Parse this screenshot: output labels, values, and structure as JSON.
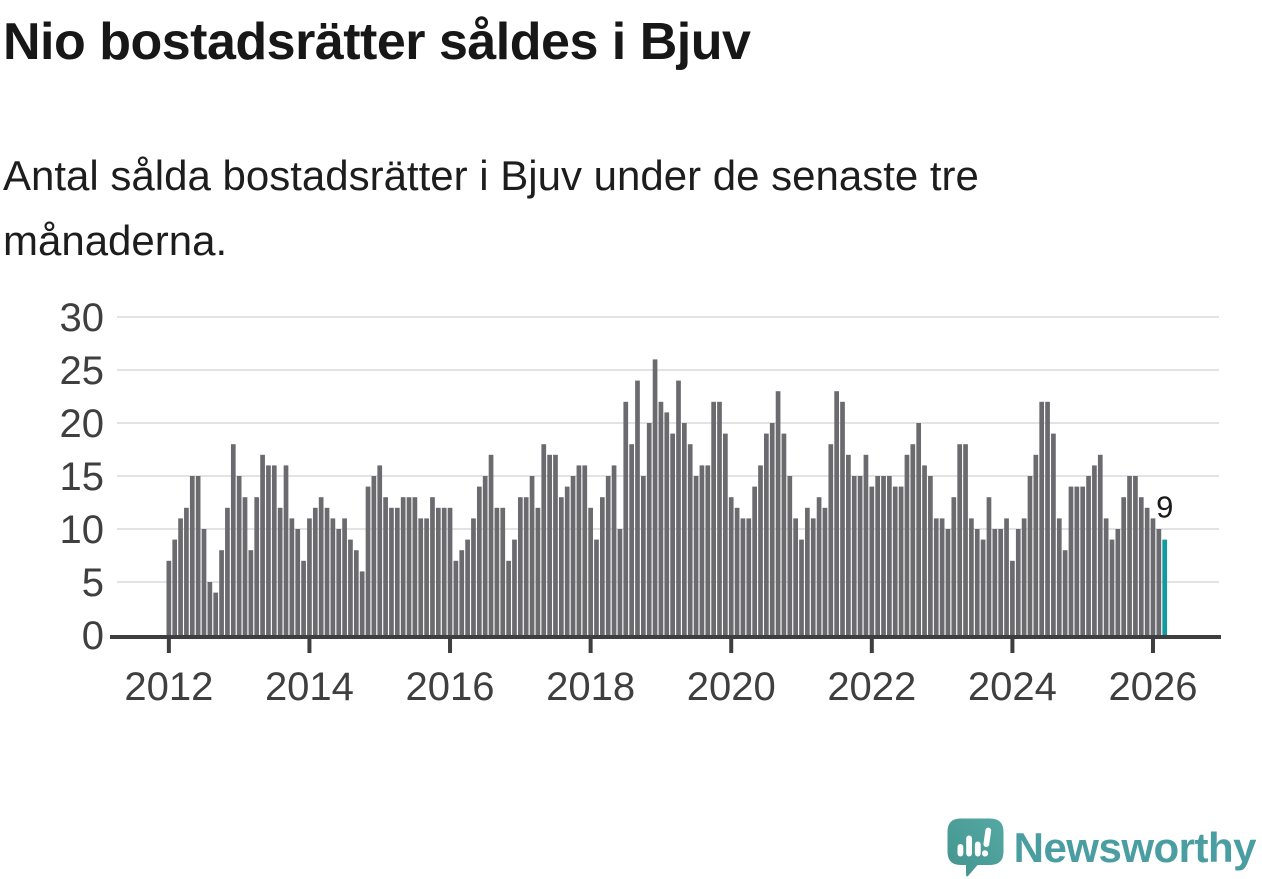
{
  "header": {
    "title": "Nio bostadsrätter såldes i Bjuv",
    "subtitle": "Antal sålda bostadsrätter i Bjuv under de senaste tre månaderna."
  },
  "branding": {
    "name": "Newsworthy",
    "icon": "newsworthy-speech-bubble-bar-chart-icon",
    "icon_color": "#4FA19E",
    "text_color": "#4A9EA1"
  },
  "chart_data": {
    "type": "bar",
    "title": "Nio bostadsrätter såldes i Bjuv",
    "subtitle": "Antal sålda bostadsrätter i Bjuv under de senaste tre månaderna.",
    "frequency": "monthly",
    "x_start_year": 2012,
    "x_tick_labels": [
      "2012",
      "2014",
      "2016",
      "2018",
      "2020",
      "2022",
      "2024",
      "2026"
    ],
    "y_ticks": [
      0,
      5,
      10,
      15,
      20,
      25,
      30
    ],
    "ylim": [
      0,
      30
    ],
    "grid": true,
    "legend": "none",
    "values": [
      7,
      9,
      11,
      12,
      15,
      15,
      10,
      5,
      4,
      8,
      12,
      18,
      15,
      13,
      8,
      13,
      17,
      16,
      16,
      12,
      16,
      11,
      10,
      7,
      11,
      12,
      13,
      12,
      11,
      10,
      11,
      9,
      8,
      6,
      14,
      15,
      16,
      13,
      12,
      12,
      13,
      13,
      13,
      11,
      11,
      13,
      12,
      12,
      12,
      7,
      8,
      9,
      11,
      14,
      15,
      17,
      12,
      12,
      7,
      9,
      13,
      13,
      15,
      12,
      18,
      17,
      17,
      13,
      14,
      15,
      16,
      16,
      12,
      9,
      13,
      15,
      16,
      10,
      22,
      18,
      24,
      15,
      20,
      26,
      22,
      21,
      19,
      24,
      20,
      18,
      15,
      16,
      16,
      22,
      22,
      19,
      13,
      12,
      11,
      11,
      14,
      16,
      19,
      20,
      23,
      19,
      15,
      11,
      9,
      12,
      11,
      13,
      12,
      18,
      23,
      22,
      17,
      15,
      15,
      17,
      14,
      15,
      15,
      15,
      14,
      14,
      17,
      18,
      20,
      16,
      15,
      11,
      11,
      10,
      13,
      18,
      18,
      11,
      10,
      9,
      13,
      10,
      10,
      11,
      7,
      10,
      11,
      15,
      17,
      22,
      22,
      19,
      11,
      8,
      14,
      14,
      14,
      15,
      16,
      17,
      11,
      9,
      10,
      13,
      15,
      15,
      13,
      12,
      11,
      10,
      9
    ],
    "highlight_last": true,
    "annotation": {
      "text": "9"
    },
    "bar_color": "#6A6A6F",
    "highlight_color": "#129AA0",
    "grid_color": "#E3E3E3",
    "axis_color": "#3E3E40",
    "tick_label_color": "#3F3F3F",
    "annotation_color": "#1A1A1A"
  }
}
